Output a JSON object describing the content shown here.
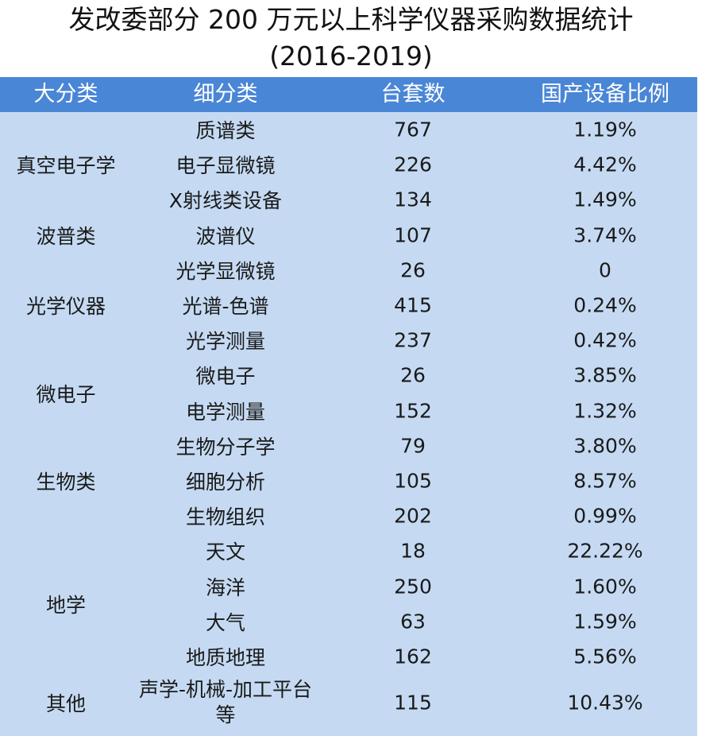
{
  "title": {
    "line1": "发改委部分 200 万元以上科学仪器采购数据统计",
    "line2": "(2016-2019)"
  },
  "colors": {
    "header_bg": "#4a86d6",
    "header_text": "#ffffff",
    "body_bg": "#c5daf2",
    "text": "#1a1a1a"
  },
  "table": {
    "headers": [
      "大分类",
      "细分类",
      "台套数",
      "国产设备比例"
    ],
    "groups": [
      {
        "label": "真空电子学",
        "rows": [
          0,
          1,
          2
        ]
      },
      {
        "label": "波普类",
        "rows": [
          3
        ]
      },
      {
        "label": "光学仪器",
        "rows": [
          4,
          5,
          6
        ]
      },
      {
        "label": "微电子",
        "rows": [
          7,
          8
        ]
      },
      {
        "label": "生物类",
        "rows": [
          9,
          10,
          11
        ]
      },
      {
        "label": "地学",
        "rows": [
          12,
          13,
          14,
          15
        ]
      },
      {
        "label": "其他",
        "rows": [
          16
        ]
      }
    ],
    "rows": [
      {
        "sub": "质谱类",
        "count": "767",
        "ratio": "1.19%"
      },
      {
        "sub": "电子显微镜",
        "count": "226",
        "ratio": "4.42%"
      },
      {
        "sub": "X射线类设备",
        "count": "134",
        "ratio": "1.49%"
      },
      {
        "sub": "波谱仪",
        "count": "107",
        "ratio": "3.74%"
      },
      {
        "sub": "光学显微镜",
        "count": "26",
        "ratio": "0"
      },
      {
        "sub": "光谱-色谱",
        "count": "415",
        "ratio": "0.24%"
      },
      {
        "sub": "光学测量",
        "count": "237",
        "ratio": "0.42%"
      },
      {
        "sub": "微电子",
        "count": "26",
        "ratio": "3.85%"
      },
      {
        "sub": "电学测量",
        "count": "152",
        "ratio": "1.32%"
      },
      {
        "sub": "生物分子学",
        "count": "79",
        "ratio": "3.80%"
      },
      {
        "sub": "细胞分析",
        "count": "105",
        "ratio": "8.57%"
      },
      {
        "sub": "生物组织",
        "count": "202",
        "ratio": "0.99%"
      },
      {
        "sub": "天文",
        "count": "18",
        "ratio": "22.22%"
      },
      {
        "sub": "海洋",
        "count": "250",
        "ratio": "1.60%"
      },
      {
        "sub": "大气",
        "count": "63",
        "ratio": "1.59%"
      },
      {
        "sub": "地质地理",
        "count": "162",
        "ratio": "5.56%"
      },
      {
        "sub": "声学-机械-加工平台等",
        "count": "115",
        "ratio": "10.43%"
      }
    ]
  },
  "chart_data": {
    "type": "table",
    "title": "发改委部分 200 万元以上科学仪器采购数据统计 (2016-2019)",
    "columns": [
      "大分类",
      "细分类",
      "台套数",
      "国产设备比例"
    ],
    "rows": [
      [
        "真空电子学",
        "质谱类",
        767,
        "1.19%"
      ],
      [
        "真空电子学",
        "电子显微镜",
        226,
        "4.42%"
      ],
      [
        "真空电子学",
        "X射线类设备",
        134,
        "1.49%"
      ],
      [
        "波普类",
        "波谱仪",
        107,
        "3.74%"
      ],
      [
        "光学仪器",
        "光学显微镜",
        26,
        "0"
      ],
      [
        "光学仪器",
        "光谱-色谱",
        415,
        "0.24%"
      ],
      [
        "光学仪器",
        "光学测量",
        237,
        "0.42%"
      ],
      [
        "微电子",
        "微电子",
        26,
        "3.85%"
      ],
      [
        "微电子",
        "电学测量",
        152,
        "1.32%"
      ],
      [
        "生物类",
        "生物分子学",
        79,
        "3.80%"
      ],
      [
        "生物类",
        "细胞分析",
        105,
        "8.57%"
      ],
      [
        "生物类",
        "生物组织",
        202,
        "0.99%"
      ],
      [
        "地学",
        "天文",
        18,
        "22.22%"
      ],
      [
        "地学",
        "海洋",
        250,
        "1.60%"
      ],
      [
        "地学",
        "大气",
        63,
        "1.59%"
      ],
      [
        "地学",
        "地质地理",
        162,
        "5.56%"
      ],
      [
        "其他",
        "声学-机械-加工平台等",
        115,
        "10.43%"
      ]
    ]
  }
}
